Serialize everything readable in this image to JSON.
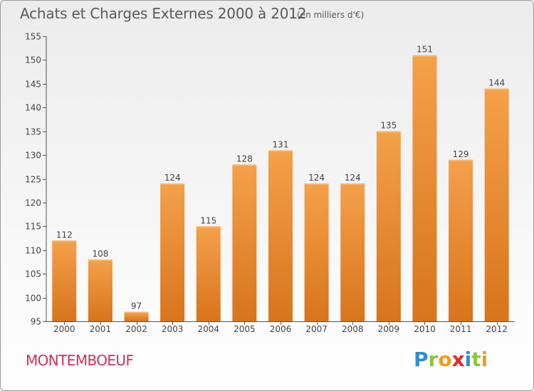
{
  "chart_data": {
    "type": "bar",
    "title": "Achats et Charges Externes 2000 à 2012",
    "subtitle": "(en milliers d'€)",
    "categories": [
      "2000",
      "2001",
      "2002",
      "2003",
      "2004",
      "2005",
      "2006",
      "2007",
      "2008",
      "2009",
      "2010",
      "2011",
      "2012"
    ],
    "values": [
      112,
      108,
      97,
      124,
      115,
      128,
      131,
      124,
      124,
      135,
      151,
      129,
      144
    ],
    "ylim": [
      95,
      155
    ],
    "yticks": [
      95,
      100,
      105,
      110,
      115,
      120,
      125,
      130,
      135,
      140,
      145,
      150,
      155
    ],
    "xlabel": "",
    "ylabel": "",
    "grid": false,
    "bar_color": "#f4a14a",
    "bar_color_dark": "#d8741c"
  },
  "footer": {
    "town": "MONTEMBOEUF",
    "logo_letters": [
      {
        "ch": "P",
        "color": "#2f8fd0"
      },
      {
        "ch": "r",
        "color": "#8cc63f"
      },
      {
        "ch": "o",
        "color": "#f39a1e"
      },
      {
        "ch": "x",
        "color": "#e8262c"
      },
      {
        "ch": "i",
        "color": "#2f8fd0"
      },
      {
        "ch": "t",
        "color": "#8cc63f"
      },
      {
        "ch": "i",
        "color": "#f39a1e"
      }
    ]
  }
}
